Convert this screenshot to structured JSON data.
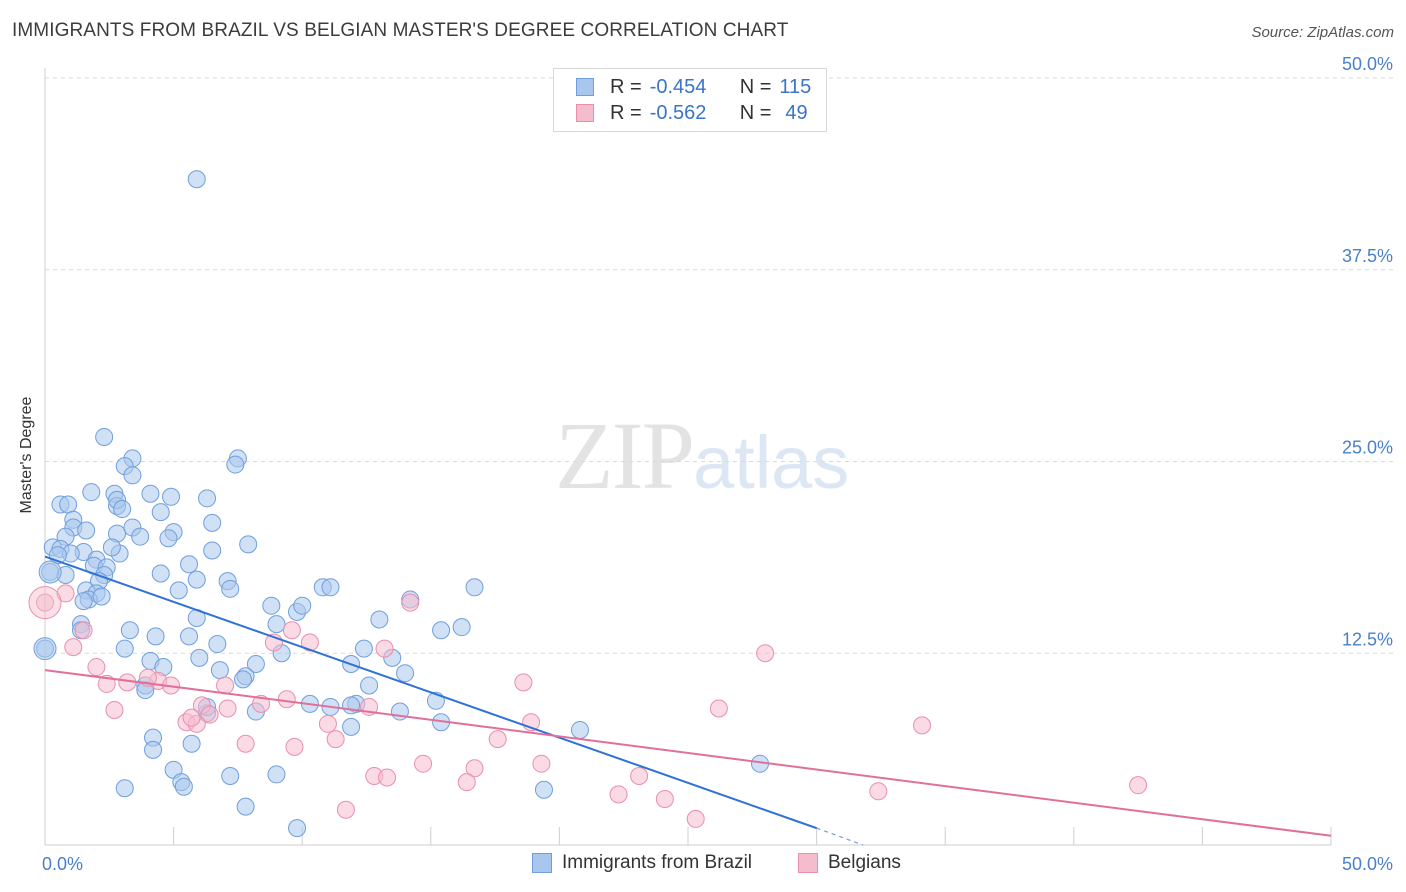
{
  "header": {
    "title": "IMMIGRANTS FROM BRAZIL VS BELGIAN MASTER'S DEGREE CORRELATION CHART",
    "source": "Source: ZipAtlas.com"
  },
  "watermark": {
    "zip": "ZIP",
    "atlas": "atlas"
  },
  "legend": {
    "series1": {
      "r_label": "R =",
      "r_value": "-0.454",
      "n_label": "N =",
      "n_value": "115"
    },
    "series2": {
      "r_label": "R =",
      "r_value": "-0.562",
      "n_label": "N =",
      "n_value": "49"
    },
    "bottom": [
      "Immigrants from Brazil",
      "Belgians"
    ]
  },
  "colors": {
    "blue_fill": "#a9c6ec",
    "blue_stroke": "#6f9fde",
    "blue_line": "#2f72d6",
    "pink_fill": "#f5bccd",
    "pink_stroke": "#ea8fab",
    "pink_line": "#e0709a",
    "grid": "#d9d9d9",
    "tick_label": "#4a80c8"
  },
  "chart_data": {
    "type": "scatter",
    "title": "IMMIGRANTS FROM BRAZIL VS BELGIAN MASTER'S DEGREE CORRELATION CHART",
    "xlabel": "",
    "ylabel": "Master's Degree",
    "xlim": [
      0,
      50
    ],
    "ylim": [
      0,
      50
    ],
    "x_tick_labels": [
      "0.0%",
      "50.0%"
    ],
    "y_ticks": [
      12.5,
      25.0,
      37.5,
      50.0
    ],
    "y_tick_labels": [
      "12.5%",
      "25.0%",
      "37.5%",
      "50.0%"
    ],
    "series": [
      {
        "name": "Immigrants from Brazil",
        "r": -0.454,
        "n": 115,
        "trend": {
          "x": [
            0,
            30
          ],
          "y": [
            18.8,
            1.1
          ],
          "dash_to": [
            31.8,
            0.0
          ]
        },
        "points": [
          [
            5.9,
            43.4
          ],
          [
            2.3,
            26.6
          ],
          [
            3.4,
            25.2
          ],
          [
            7.5,
            25.2
          ],
          [
            3.1,
            24.7
          ],
          [
            7.4,
            24.8
          ],
          [
            3.4,
            24.1
          ],
          [
            1.8,
            23.0
          ],
          [
            2.7,
            22.9
          ],
          [
            4.1,
            22.9
          ],
          [
            4.9,
            22.7
          ],
          [
            6.3,
            22.6
          ],
          [
            0.6,
            22.2
          ],
          [
            0.9,
            22.2
          ],
          [
            2.8,
            22.1
          ],
          [
            4.5,
            21.7
          ],
          [
            1.1,
            21.2
          ],
          [
            6.5,
            21.0
          ],
          [
            1.1,
            20.7
          ],
          [
            1.6,
            20.5
          ],
          [
            3.4,
            20.7
          ],
          [
            5.0,
            20.4
          ],
          [
            2.8,
            20.3
          ],
          [
            3.7,
            20.1
          ],
          [
            0.8,
            20.1
          ],
          [
            4.8,
            20.0
          ],
          [
            7.9,
            19.6
          ],
          [
            0.3,
            19.4
          ],
          [
            0.6,
            19.3
          ],
          [
            1.5,
            19.1
          ],
          [
            1.0,
            19.0
          ],
          [
            2.9,
            19.0
          ],
          [
            6.5,
            19.2
          ],
          [
            2.0,
            18.6
          ],
          [
            5.6,
            18.3
          ],
          [
            1.9,
            18.2
          ],
          [
            2.4,
            18.1
          ],
          [
            2.3,
            17.6
          ],
          [
            0.8,
            17.6
          ],
          [
            0.2,
            17.8
          ],
          [
            4.5,
            17.7
          ],
          [
            2.1,
            17.2
          ],
          [
            5.9,
            17.3
          ],
          [
            7.1,
            17.2
          ],
          [
            10.8,
            16.8
          ],
          [
            11.1,
            16.8
          ],
          [
            16.7,
            16.8
          ],
          [
            1.6,
            16.6
          ],
          [
            5.2,
            16.6
          ],
          [
            7.2,
            16.7
          ],
          [
            2.0,
            16.4
          ],
          [
            1.7,
            16.0
          ],
          [
            2.2,
            16.2
          ],
          [
            14.2,
            16.0
          ],
          [
            9.8,
            15.2
          ],
          [
            5.9,
            14.8
          ],
          [
            13.0,
            14.7
          ],
          [
            1.4,
            14.4
          ],
          [
            9.0,
            14.4
          ],
          [
            16.2,
            14.2
          ],
          [
            1.4,
            14.0
          ],
          [
            3.3,
            14.0
          ],
          [
            4.3,
            13.6
          ],
          [
            5.6,
            13.6
          ],
          [
            0.0,
            12.8
          ],
          [
            3.1,
            12.8
          ],
          [
            6.0,
            12.2
          ],
          [
            4.1,
            12.0
          ],
          [
            8.2,
            11.8
          ],
          [
            11.9,
            11.8
          ],
          [
            4.6,
            11.6
          ],
          [
            6.8,
            11.4
          ],
          [
            7.8,
            11.0
          ],
          [
            14.0,
            11.2
          ],
          [
            7.7,
            10.8
          ],
          [
            3.9,
            10.4
          ],
          [
            3.9,
            10.1
          ],
          [
            10.3,
            9.2
          ],
          [
            15.2,
            9.4
          ],
          [
            12.1,
            9.2
          ],
          [
            11.9,
            9.1
          ],
          [
            13.8,
            8.7
          ],
          [
            8.2,
            8.7
          ],
          [
            6.3,
            8.6
          ],
          [
            6.3,
            9.0
          ],
          [
            11.9,
            7.7
          ],
          [
            15.4,
            8.0
          ],
          [
            20.8,
            7.5
          ],
          [
            4.2,
            7.0
          ],
          [
            5.7,
            6.6
          ],
          [
            4.2,
            6.2
          ],
          [
            27.8,
            5.3
          ],
          [
            5.0,
            4.9
          ],
          [
            7.2,
            4.5
          ],
          [
            5.3,
            4.1
          ],
          [
            9.0,
            4.6
          ],
          [
            3.1,
            3.7
          ],
          [
            5.4,
            3.8
          ],
          [
            19.4,
            3.6
          ],
          [
            7.8,
            2.5
          ],
          [
            9.8,
            1.1
          ],
          [
            15.4,
            14.0
          ],
          [
            12.4,
            12.8
          ],
          [
            11.1,
            9.0
          ],
          [
            2.8,
            22.5
          ],
          [
            3.0,
            21.9
          ],
          [
            0.5,
            18.9
          ],
          [
            2.6,
            19.4
          ],
          [
            1.5,
            15.9
          ],
          [
            8.8,
            15.6
          ],
          [
            10.0,
            15.6
          ],
          [
            6.7,
            13.1
          ],
          [
            9.2,
            12.5
          ],
          [
            12.6,
            10.4
          ],
          [
            13.5,
            12.2
          ]
        ]
      },
      {
        "name": "Belgians",
        "r": -0.562,
        "n": 49,
        "trend": {
          "x": [
            0,
            50
          ],
          "y": [
            11.4,
            0.6
          ]
        },
        "points": [
          [
            0.0,
            15.8
          ],
          [
            0.8,
            16.4
          ],
          [
            14.2,
            15.8
          ],
          [
            1.5,
            14.0
          ],
          [
            9.6,
            14.0
          ],
          [
            1.1,
            12.9
          ],
          [
            8.9,
            13.2
          ],
          [
            10.3,
            13.2
          ],
          [
            28.0,
            12.5
          ],
          [
            2.0,
            11.6
          ],
          [
            4.4,
            10.7
          ],
          [
            3.2,
            10.6
          ],
          [
            4.0,
            10.9
          ],
          [
            2.4,
            10.5
          ],
          [
            7.0,
            10.4
          ],
          [
            4.9,
            10.4
          ],
          [
            18.6,
            10.6
          ],
          [
            9.4,
            9.5
          ],
          [
            8.4,
            9.2
          ],
          [
            12.6,
            9.0
          ],
          [
            6.1,
            9.1
          ],
          [
            7.1,
            8.9
          ],
          [
            2.7,
            8.8
          ],
          [
            26.2,
            8.9
          ],
          [
            6.4,
            8.5
          ],
          [
            5.5,
            8.0
          ],
          [
            5.9,
            7.9
          ],
          [
            11.0,
            7.9
          ],
          [
            18.9,
            8.0
          ],
          [
            34.1,
            7.8
          ],
          [
            11.3,
            6.9
          ],
          [
            17.6,
            6.9
          ],
          [
            7.8,
            6.6
          ],
          [
            9.7,
            6.4
          ],
          [
            14.7,
            5.3
          ],
          [
            16.7,
            5.0
          ],
          [
            19.3,
            5.3
          ],
          [
            12.8,
            4.5
          ],
          [
            13.3,
            4.4
          ],
          [
            16.4,
            4.1
          ],
          [
            23.1,
            4.5
          ],
          [
            22.3,
            3.3
          ],
          [
            24.1,
            3.0
          ],
          [
            32.4,
            3.5
          ],
          [
            42.5,
            3.9
          ],
          [
            11.7,
            2.3
          ],
          [
            25.3,
            1.7
          ],
          [
            13.2,
            12.8
          ],
          [
            5.7,
            8.3
          ]
        ]
      }
    ]
  }
}
